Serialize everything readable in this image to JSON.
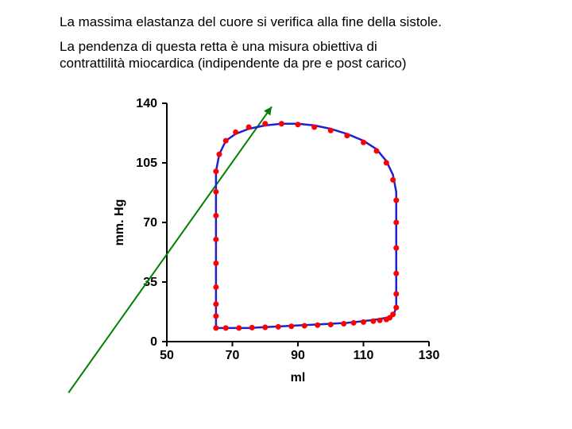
{
  "caption": {
    "line1": "La massima elastanza del cuore si verifica alla fine della sistole.",
    "line2": "La pendenza di questa retta è una misura obiettiva di\ncontrattilità miocardica (indipendente da pre e post carico)"
  },
  "chart": {
    "type": "scatter-with-loop",
    "background_color": "#ffffff",
    "plot_background": "#ffffff",
    "axis_color": "#000000",
    "axis_width": 2,
    "xlim": [
      50,
      130
    ],
    "ylim": [
      0,
      140
    ],
    "xticks": [
      50,
      70,
      90,
      110,
      130
    ],
    "yticks": [
      0,
      35,
      70,
      105,
      140
    ],
    "xlabel": "ml",
    "ylabel": "mm. Hg",
    "label_fontsize": 16,
    "tick_fontsize": 16,
    "tick_fontweight": "bold",
    "loop": {
      "stroke": "#2020d0",
      "stroke_width": 2.5,
      "fill": "none",
      "points": [
        [
          65,
          8
        ],
        [
          70,
          8
        ],
        [
          75,
          8
        ],
        [
          80,
          8.5
        ],
        [
          85,
          9
        ],
        [
          90,
          9.5
        ],
        [
          95,
          10
        ],
        [
          100,
          10.5
        ],
        [
          105,
          11
        ],
        [
          110,
          12
        ],
        [
          114,
          13
        ],
        [
          117,
          14
        ],
        [
          119,
          15
        ],
        [
          120,
          20
        ],
        [
          120,
          30
        ],
        [
          120,
          45
        ],
        [
          120,
          60
        ],
        [
          120,
          75
        ],
        [
          120,
          88
        ],
        [
          119,
          98
        ],
        [
          117,
          106
        ],
        [
          114,
          113
        ],
        [
          110,
          118
        ],
        [
          105,
          122
        ],
        [
          100,
          125
        ],
        [
          95,
          127
        ],
        [
          90,
          128
        ],
        [
          85,
          128
        ],
        [
          80,
          127
        ],
        [
          75,
          125
        ],
        [
          71,
          122
        ],
        [
          68,
          118
        ],
        [
          66,
          110
        ],
        [
          65,
          100
        ],
        [
          65,
          85
        ],
        [
          65,
          70
        ],
        [
          65,
          55
        ],
        [
          65,
          40
        ],
        [
          65,
          25
        ],
        [
          65,
          12
        ],
        [
          65,
          8
        ]
      ]
    },
    "markers": {
      "color": "#ff0000",
      "radius": 3.5,
      "points": [
        [
          65,
          32
        ],
        [
          65,
          46
        ],
        [
          65,
          60
        ],
        [
          65,
          74
        ],
        [
          65,
          88
        ],
        [
          65,
          100
        ],
        [
          66,
          110
        ],
        [
          68,
          118
        ],
        [
          71,
          123
        ],
        [
          75,
          126
        ],
        [
          80,
          128
        ],
        [
          85,
          128
        ],
        [
          90,
          127.5
        ],
        [
          95,
          126
        ],
        [
          100,
          124
        ],
        [
          105,
          121
        ],
        [
          110,
          117
        ],
        [
          114,
          112
        ],
        [
          117,
          105
        ],
        [
          119,
          95
        ],
        [
          120,
          83
        ],
        [
          120,
          70
        ],
        [
          120,
          55
        ],
        [
          120,
          40
        ],
        [
          120,
          28
        ],
        [
          120,
          20
        ],
        [
          119,
          16
        ],
        [
          118,
          14
        ],
        [
          117,
          13
        ],
        [
          115,
          12.5
        ],
        [
          113,
          12
        ],
        [
          110,
          11.5
        ],
        [
          107,
          11
        ],
        [
          104,
          10.5
        ],
        [
          100,
          10
        ],
        [
          96,
          9.7
        ],
        [
          92,
          9.3
        ],
        [
          88,
          9
        ],
        [
          84,
          8.7
        ],
        [
          80,
          8.4
        ],
        [
          76,
          8.2
        ],
        [
          72,
          8
        ],
        [
          68,
          8
        ],
        [
          65,
          8
        ],
        [
          65,
          15
        ],
        [
          65,
          22
        ]
      ]
    },
    "elastance_line": {
      "stroke": "#008000",
      "stroke_width": 2,
      "x1": 20,
      "y1": -30,
      "x2": 82,
      "y2": 138,
      "arrow": true
    }
  }
}
